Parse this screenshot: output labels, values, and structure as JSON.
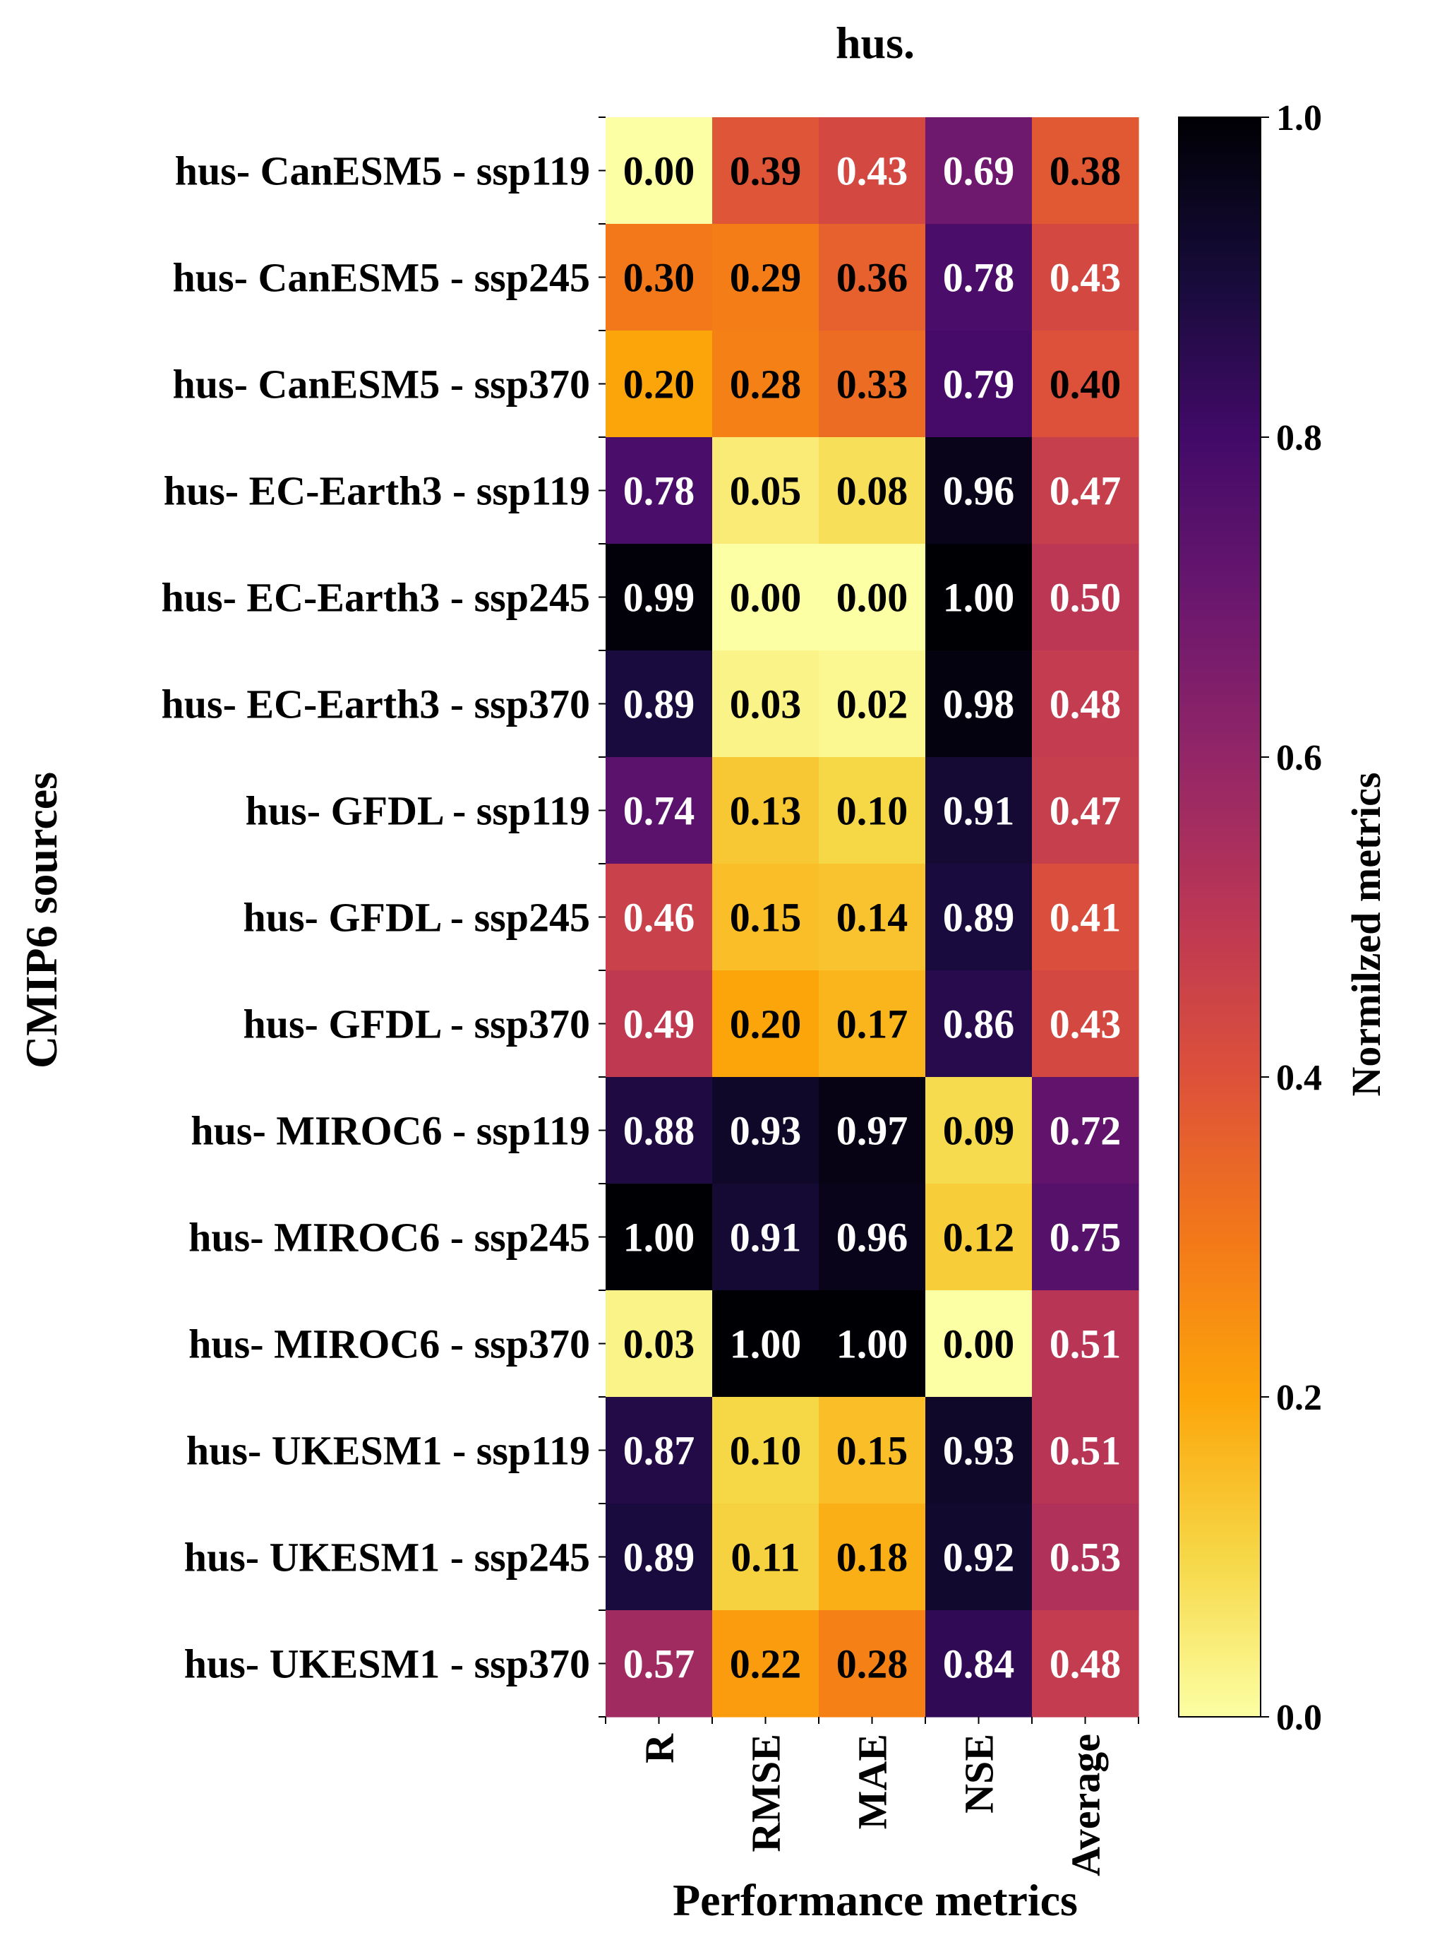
{
  "chart_data": {
    "type": "heatmap",
    "title": "hus.",
    "xlabel": "Performance metrics",
    "ylabel": "CMIP6 sources",
    "colorbar_label": "Normilzed metrics",
    "colormap": "inferno_r",
    "vlim": [
      0,
      1
    ],
    "colorbar_ticks": [
      "0.0",
      "0.2",
      "0.4",
      "0.6",
      "0.8",
      "1.0"
    ],
    "colorbar_tick_values": [
      0.0,
      0.2,
      0.4,
      0.6,
      0.8,
      1.0
    ],
    "columns": [
      "R",
      "RMSE",
      "MAE",
      "NSE",
      "Average"
    ],
    "rows": [
      "hus- CanESM5 - ssp119",
      "hus- CanESM5 - ssp245",
      "hus- CanESM5 - ssp370",
      "hus- EC-Earth3 - ssp119",
      "hus- EC-Earth3 - ssp245",
      "hus- EC-Earth3 - ssp370",
      "hus- GFDL - ssp119",
      "hus- GFDL - ssp245",
      "hus- GFDL - ssp370",
      "hus- MIROC6 - ssp119",
      "hus- MIROC6 - ssp245",
      "hus- MIROC6 - ssp370",
      "hus- UKESM1 - ssp119",
      "hus- UKESM1 - ssp245",
      "hus- UKESM1 - ssp370"
    ],
    "values": [
      [
        0.0,
        0.39,
        0.43,
        0.69,
        0.38
      ],
      [
        0.3,
        0.29,
        0.36,
        0.78,
        0.43
      ],
      [
        0.2,
        0.28,
        0.33,
        0.79,
        0.4
      ],
      [
        0.78,
        0.05,
        0.08,
        0.96,
        0.47
      ],
      [
        0.99,
        0.0,
        0.0,
        1.0,
        0.5
      ],
      [
        0.89,
        0.03,
        0.02,
        0.98,
        0.48
      ],
      [
        0.74,
        0.13,
        0.1,
        0.91,
        0.47
      ],
      [
        0.46,
        0.15,
        0.14,
        0.89,
        0.41
      ],
      [
        0.49,
        0.2,
        0.17,
        0.86,
        0.43
      ],
      [
        0.88,
        0.93,
        0.97,
        0.09,
        0.72
      ],
      [
        1.0,
        0.91,
        0.96,
        0.12,
        0.75
      ],
      [
        0.03,
        1.0,
        1.0,
        0.0,
        0.51
      ],
      [
        0.87,
        0.1,
        0.15,
        0.93,
        0.51
      ],
      [
        0.89,
        0.11,
        0.18,
        0.92,
        0.53
      ],
      [
        0.57,
        0.22,
        0.28,
        0.84,
        0.48
      ]
    ]
  }
}
